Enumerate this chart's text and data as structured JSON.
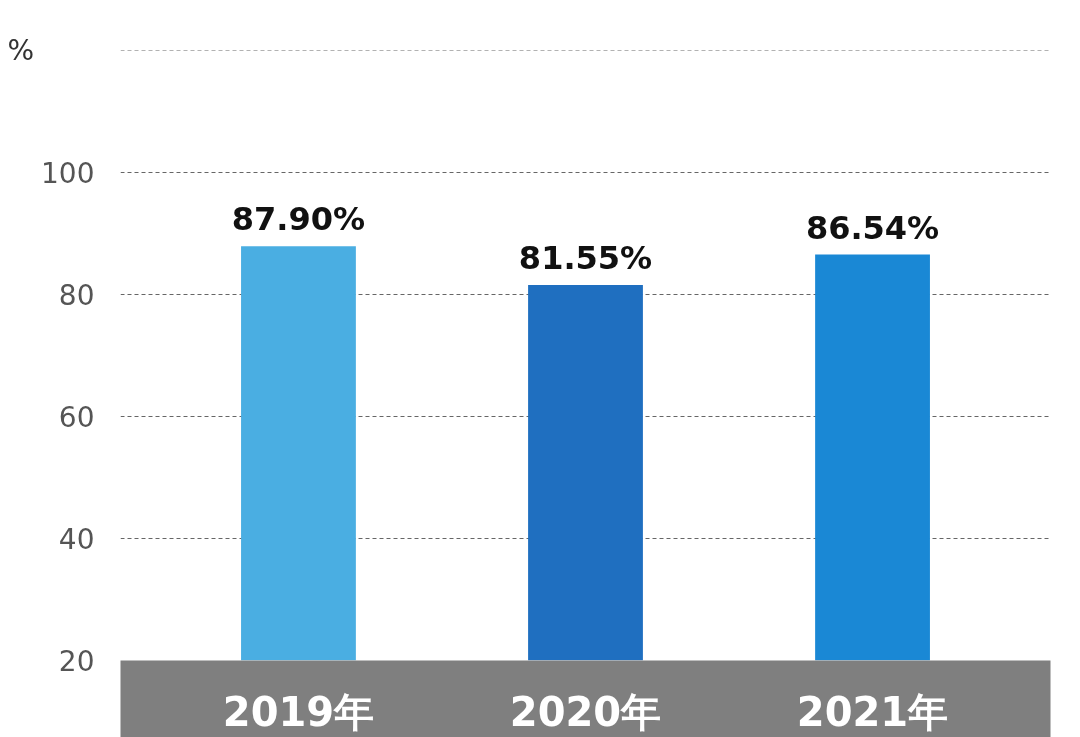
{
  "chart_data": {
    "type": "bar",
    "ylabel": "%",
    "categories": [
      "2019年",
      "2020年",
      "2021年"
    ],
    "values": [
      87.9,
      81.55,
      86.54
    ],
    "value_labels": [
      "87.90%",
      "81.55%",
      "86.54%"
    ],
    "colors": [
      "#4aaee2",
      "#1f6fc0",
      "#1a88d5"
    ],
    "ylim": [
      20,
      120
    ],
    "yticks": [
      20,
      40,
      60,
      80,
      100,
      {
        "value": 120,
        "label": null
      }
    ],
    "grid": "y"
  }
}
